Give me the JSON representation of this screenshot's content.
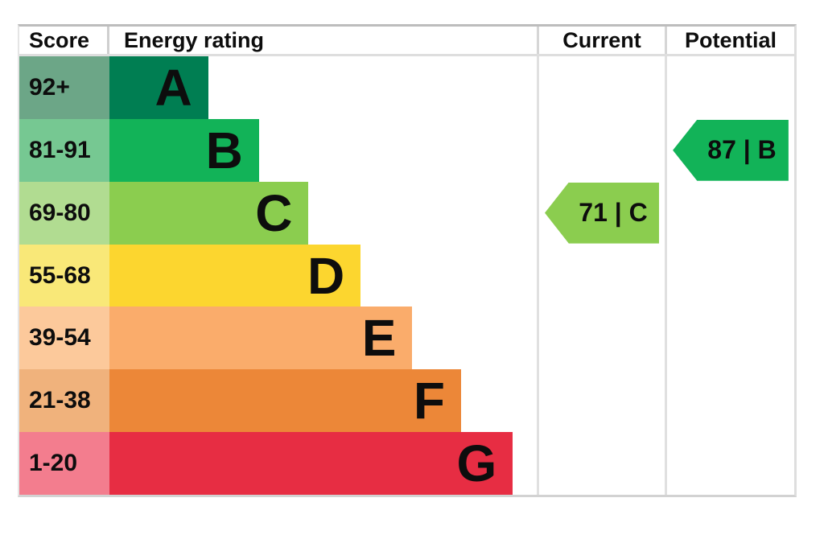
{
  "header": {
    "score": "Score",
    "rating": "Energy rating",
    "current": "Current",
    "potential": "Potential"
  },
  "bands": [
    {
      "score_range": "92+",
      "letter": "A",
      "bar_width_pct": 23.1,
      "bar_color": "#007e52",
      "score_cell_color": "#6ca687"
    },
    {
      "score_range": "81-91",
      "letter": "B",
      "bar_width_pct": 35.0,
      "bar_color": "#12b358",
      "score_cell_color": "#76c892"
    },
    {
      "score_range": "69-80",
      "letter": "C",
      "bar_width_pct": 46.6,
      "bar_color": "#8bcd4f",
      "score_cell_color": "#b1dc91"
    },
    {
      "score_range": "55-68",
      "letter": "D",
      "bar_width_pct": 58.8,
      "bar_color": "#fcd62f",
      "score_cell_color": "#f9e878"
    },
    {
      "score_range": "39-54",
      "letter": "E",
      "bar_width_pct": 70.9,
      "bar_color": "#faac6b",
      "score_cell_color": "#fcc99b"
    },
    {
      "score_range": "21-38",
      "letter": "F",
      "bar_width_pct": 82.3,
      "bar_color": "#ec8738",
      "score_cell_color": "#f0b27c"
    },
    {
      "score_range": "1-20",
      "letter": "G",
      "bar_width_pct": 94.4,
      "bar_color": "#e72d43",
      "score_cell_color": "#f37d8e"
    }
  ],
  "current": {
    "value": 71,
    "band": "C",
    "label": "71 | C",
    "color": "#8bcd4f"
  },
  "potential": {
    "value": 87,
    "band": "B",
    "label": "87 | B",
    "color": "#12b358"
  },
  "border_colors": {
    "top": "#bdbdbd",
    "header_bottom": "#dedede",
    "vertical": "#e0e0e0",
    "bottom": "#d2d2d2"
  },
  "chart_data": {
    "type": "bar",
    "title": "Energy rating",
    "orientation": "horizontal",
    "columns": [
      "Score",
      "Energy rating",
      "Current",
      "Potential"
    ],
    "categories": [
      "A",
      "B",
      "C",
      "D",
      "E",
      "F",
      "G"
    ],
    "category_score_ranges": [
      "92+",
      "81-91",
      "69-80",
      "55-68",
      "39-54",
      "21-38",
      "1-20"
    ],
    "bar_lengths_pct_of_column": [
      23.1,
      35.0,
      46.6,
      58.8,
      70.9,
      82.3,
      94.4
    ],
    "bar_colors": [
      "#007e52",
      "#12b358",
      "#8bcd4f",
      "#fcd62f",
      "#faac6b",
      "#ec8738",
      "#e72d43"
    ],
    "score_cell_colors": [
      "#6ca687",
      "#76c892",
      "#b1dc91",
      "#f9e878",
      "#fcc99b",
      "#f0b27c",
      "#f37d8e"
    ],
    "markers": [
      {
        "column": "Current",
        "value": 71,
        "band": "C",
        "color": "#8bcd4f"
      },
      {
        "column": "Potential",
        "value": 87,
        "band": "B",
        "color": "#12b358"
      }
    ],
    "grid": "off",
    "legend": "off"
  }
}
